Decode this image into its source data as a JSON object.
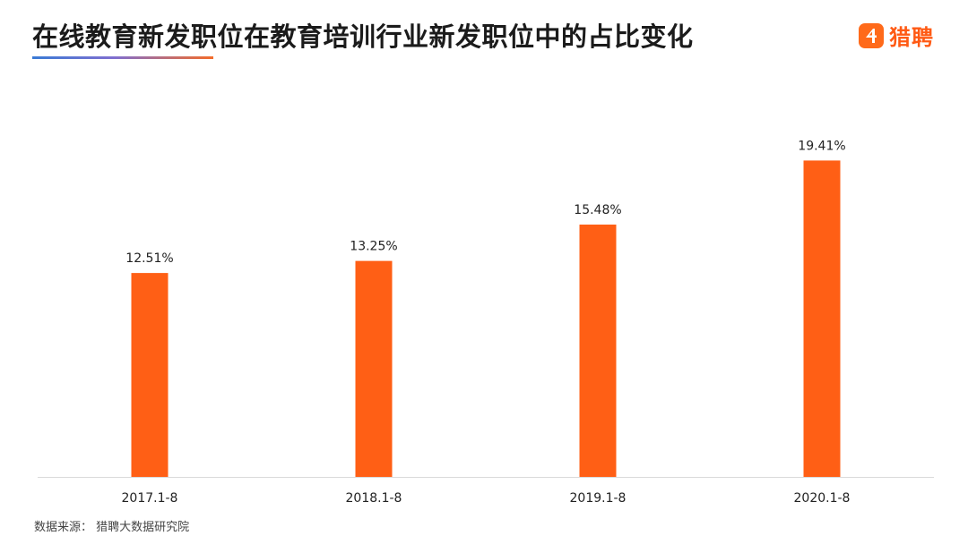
{
  "header": {
    "title": "在线教育新发职位在教育培训行业新发职位中的占比变化",
    "logo_text": "猎聘",
    "logo_icon": "liepin-logo-icon"
  },
  "colors": {
    "bar": "#ff5f15",
    "logo": "#ff6a1a",
    "axis": "#d9d9d9"
  },
  "chart_data": {
    "type": "bar",
    "title": "在线教育新发职位在教育培训行业新发职位中的占比变化",
    "categories": [
      "2017.1-8",
      "2018.1-8",
      "2019.1-8",
      "2020.1-8"
    ],
    "values": [
      12.51,
      13.25,
      15.48,
      19.41
    ],
    "value_labels": [
      "12.51%",
      "13.25%",
      "15.48%",
      "19.41%"
    ],
    "unit": "%",
    "xlabel": "",
    "ylabel": "",
    "ylim": [
      0,
      25.8
    ],
    "grid": false,
    "legend": "none"
  },
  "footer": {
    "source": "数据来源：  猎聘大数据研究院"
  }
}
